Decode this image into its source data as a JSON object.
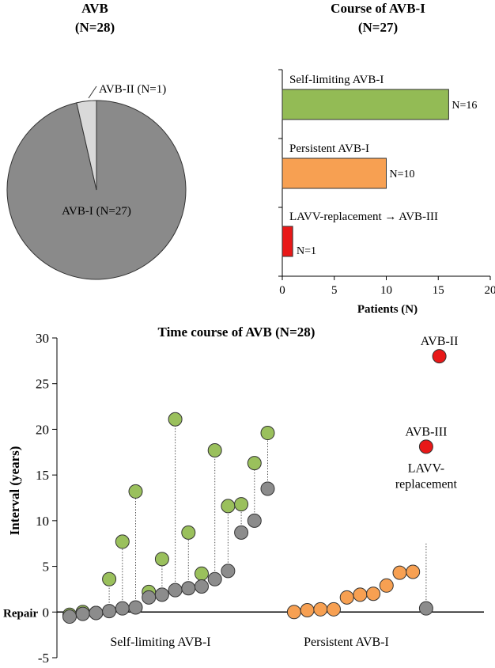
{
  "chart_data": [
    {
      "type": "pie",
      "title_line1": "AVB",
      "title_line2": "(N=28)",
      "slices": [
        {
          "label": "AVB-I (N=27)",
          "value": 27,
          "color": "#8a8a8a"
        },
        {
          "label": "AVB-II (N=1)",
          "value": 1,
          "color": "#d9d9d9"
        }
      ]
    },
    {
      "type": "bar",
      "orientation": "horizontal",
      "title_line1": "Course of AVB-I",
      "title_line2": "(N=27)",
      "xlabel": "Patients (N)",
      "xlim": [
        0,
        20
      ],
      "xticks": [
        "0",
        "5",
        "10",
        "15",
        "20"
      ],
      "bars": [
        {
          "label": "Self-limiting AVB-I",
          "value": 16,
          "value_label": "N=16",
          "color": "#93bb55"
        },
        {
          "label": "Persistent AVB-I",
          "value": 10,
          "value_label": "N=10",
          "color": "#f7a052"
        },
        {
          "label": "LAVV-replacement → AVB-III",
          "value": 1,
          "value_label": "N=1",
          "color": "#e81818"
        }
      ]
    },
    {
      "type": "scatter",
      "title": "Time course of AVB (N=28)",
      "ylabel": "Interval (years)",
      "ylim": [
        -5,
        30
      ],
      "yticks": [
        "-5",
        "0",
        "5",
        "10",
        "15",
        "20",
        "25",
        "30"
      ],
      "zero_label": "Repair",
      "group_labels": [
        "Self-limiting AVB-I",
        "Persistent AVB-I"
      ],
      "colors": {
        "onset": "#8c8c8c",
        "resolution": "#9ac05c",
        "persistent": "#f7a052",
        "event": "#e81818"
      },
      "self_limiting": [
        {
          "x": 1,
          "onset": -0.5,
          "resolved": -0.3
        },
        {
          "x": 2,
          "onset": -0.2,
          "resolved": 0.0
        },
        {
          "x": 3,
          "onset": -0.1,
          "resolved": -0.1
        },
        {
          "x": 4,
          "onset": 0.1,
          "resolved": 3.6
        },
        {
          "x": 5,
          "onset": 0.4,
          "resolved": 7.7
        },
        {
          "x": 6,
          "onset": 0.5,
          "resolved": 13.2
        },
        {
          "x": 7,
          "onset": 1.6,
          "resolved": 2.2
        },
        {
          "x": 8,
          "onset": 1.9,
          "resolved": 5.8
        },
        {
          "x": 9,
          "onset": 2.4,
          "resolved": 21.1
        },
        {
          "x": 10,
          "onset": 2.6,
          "resolved": 8.7
        },
        {
          "x": 11,
          "onset": 2.8,
          "resolved": 4.2
        },
        {
          "x": 12,
          "onset": 3.6,
          "resolved": 17.7
        },
        {
          "x": 13,
          "onset": 4.5,
          "resolved": 11.6
        },
        {
          "x": 14,
          "onset": 8.7,
          "resolved": 11.8
        },
        {
          "x": 15,
          "onset": 10.0,
          "resolved": 16.3
        },
        {
          "x": 16,
          "onset": 13.5,
          "resolved": 19.6
        }
      ],
      "persistent": [
        {
          "x": 18,
          "y": 0.0
        },
        {
          "x": 19,
          "y": 0.2
        },
        {
          "x": 20,
          "y": 0.3
        },
        {
          "x": 21,
          "y": 0.3
        },
        {
          "x": 22,
          "y": 1.6
        },
        {
          "x": 23,
          "y": 1.9
        },
        {
          "x": 24,
          "y": 2.0
        },
        {
          "x": 25,
          "y": 2.9
        },
        {
          "x": 26,
          "y": 4.3
        },
        {
          "x": 27,
          "y": 4.4
        }
      ],
      "lavv_case": {
        "x": 28,
        "onset": 0.4,
        "event": 18.1,
        "event_label": "AVB-III",
        "note_line1": "LAVV-",
        "note_line2": "replacement"
      },
      "avb2_case": {
        "x": 29,
        "y": 28.0,
        "label": "AVB-II"
      }
    }
  ]
}
